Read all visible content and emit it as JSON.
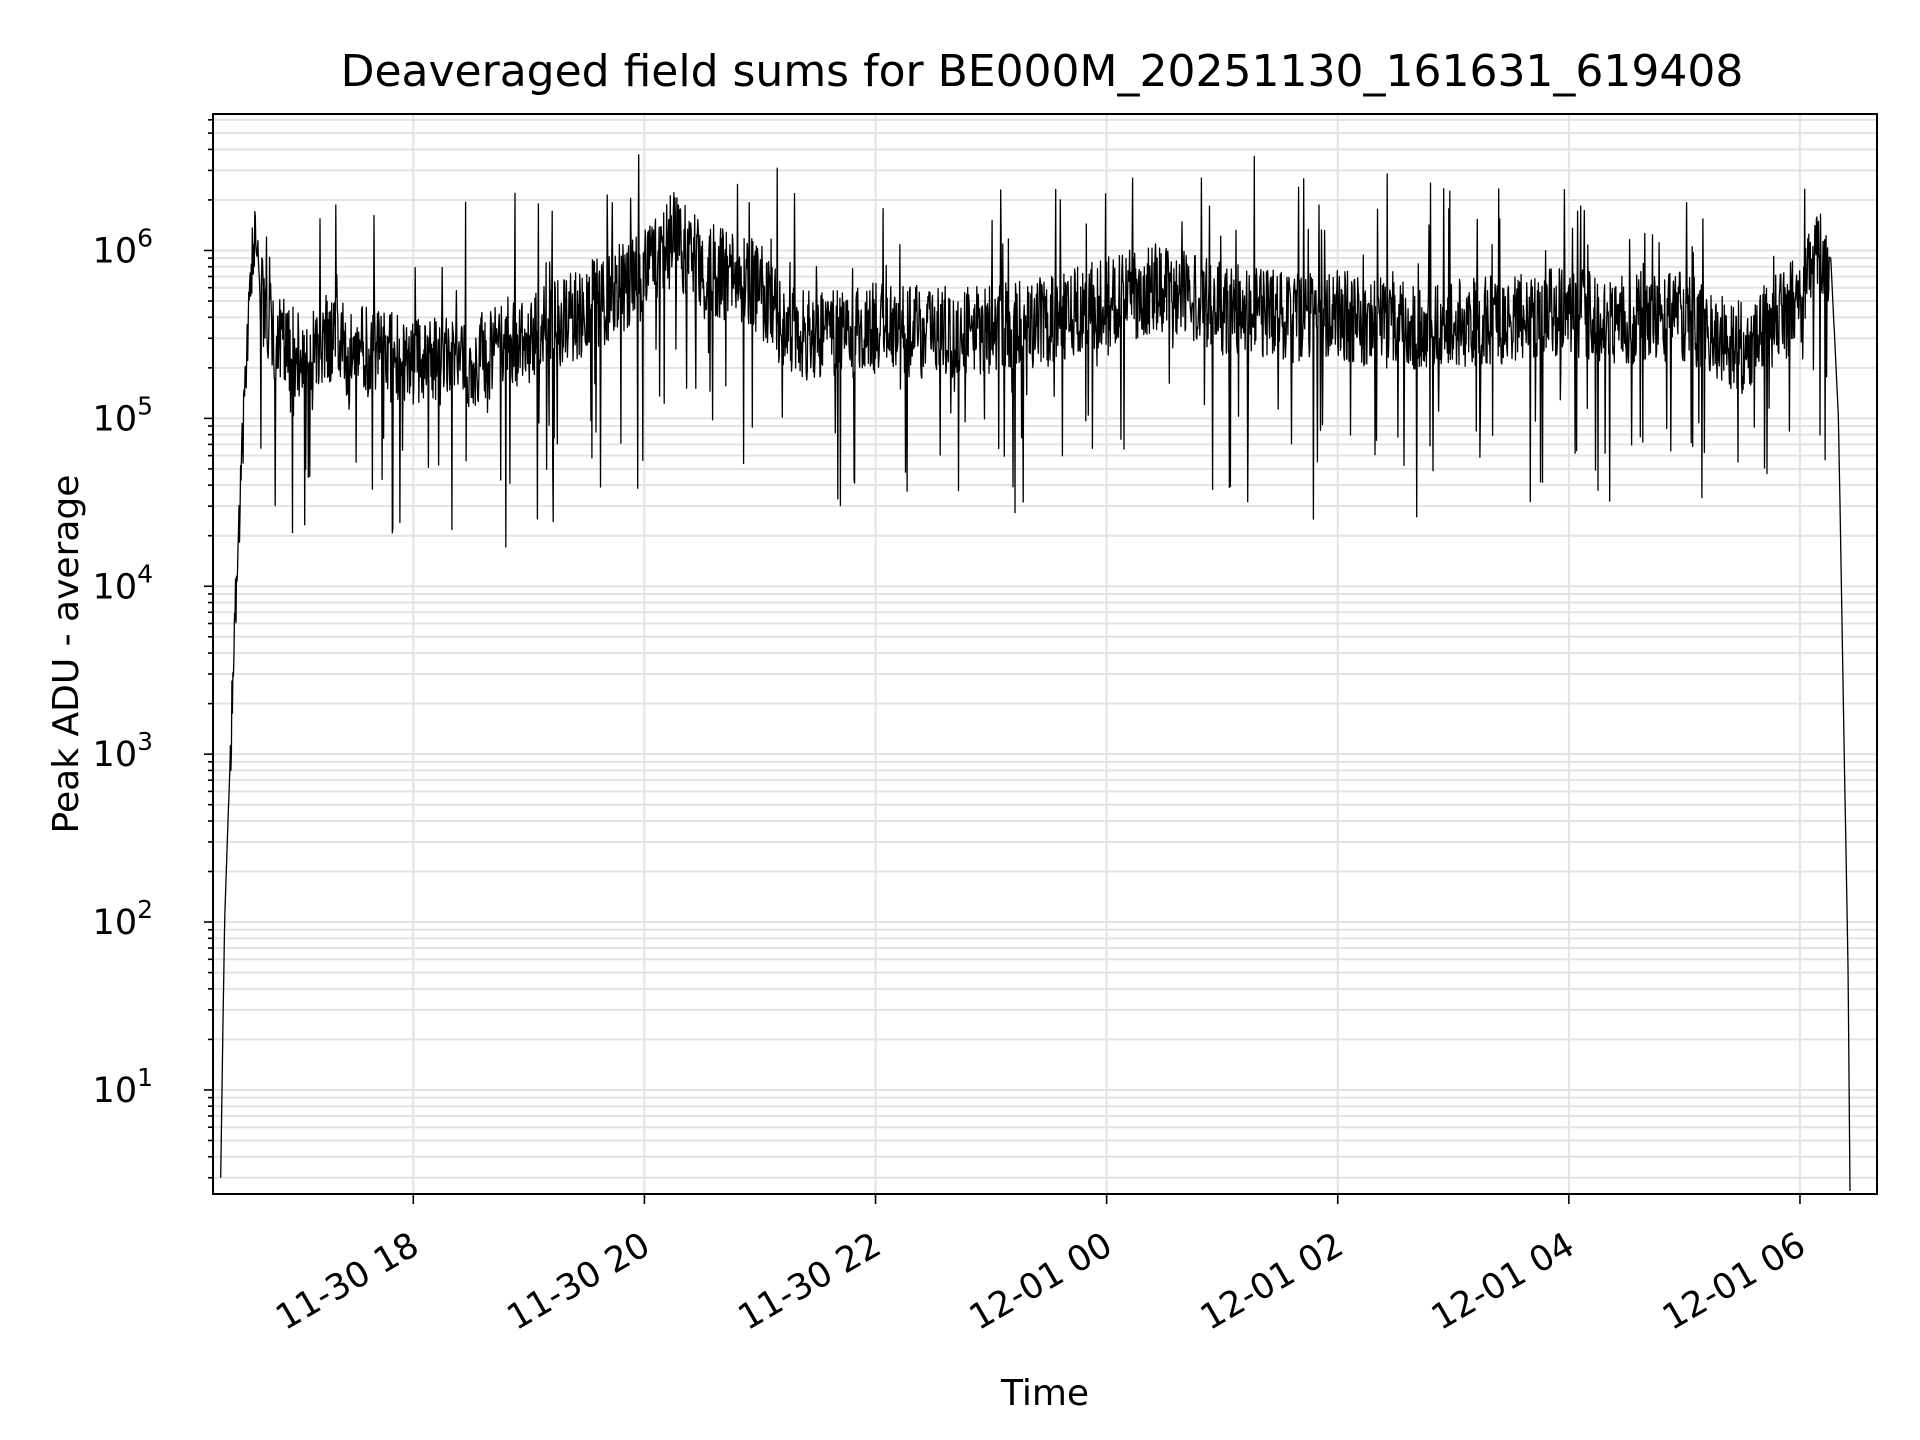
{
  "chart_data": {
    "type": "line",
    "title": "Deaveraged field sums for BE000M_20251130_161631_619408",
    "xlabel": "Time",
    "ylabel": "Peak ADU - average",
    "yscale": "log",
    "ylim": [
      2.4,
      6500000
    ],
    "xlim": [
      "2025-11-30 16:16",
      "2025-12-01 06:40"
    ],
    "x_ticks": [
      "11-30 18",
      "11-30 20",
      "11-30 22",
      "12-01 00",
      "12-01 02",
      "12-01 04",
      "12-01 06"
    ],
    "y_ticks": [
      {
        "base": "10",
        "exp": "1"
      },
      {
        "base": "10",
        "exp": "2"
      },
      {
        "base": "10",
        "exp": "3"
      },
      {
        "base": "10",
        "exp": "4"
      },
      {
        "base": "10",
        "exp": "5"
      },
      {
        "base": "10",
        "exp": "6"
      }
    ],
    "grid": true,
    "line_color": "#000000",
    "series": [
      {
        "x": [
          "2025-11-30 16:20",
          "2025-11-30 16:22",
          "2025-11-30 16:25",
          "2025-11-30 16:28",
          "2025-11-30 16:30",
          "2025-11-30 16:33",
          "2025-11-30 16:36",
          "2025-11-30 16:38",
          "2025-11-30 16:40",
          "2025-11-30 16:45",
          "2025-11-30 17:00",
          "2025-11-30 17:15",
          "2025-11-30 17:30",
          "2025-11-30 18:00",
          "2025-11-30 18:30",
          "2025-11-30 19:00",
          "2025-11-30 19:30",
          "2025-11-30 20:00",
          "2025-11-30 20:15",
          "2025-11-30 20:30",
          "2025-11-30 21:00",
          "2025-11-30 21:10",
          "2025-11-30 21:30",
          "2025-11-30 22:00",
          "2025-11-30 22:30",
          "2025-11-30 23:00",
          "2025-11-30 23:30",
          "2025-12-01 00:00",
          "2025-12-01 00:30",
          "2025-12-01 01:00",
          "2025-12-01 01:30",
          "2025-12-01 02:00",
          "2025-12-01 02:30",
          "2025-12-01 03:00",
          "2025-12-01 03:30",
          "2025-12-01 04:00",
          "2025-12-01 04:30",
          "2025-12-01 05:00",
          "2025-12-01 05:30",
          "2025-12-01 06:00",
          "2025-12-01 06:10",
          "2025-12-01 06:16",
          "2025-12-01 06:20",
          "2025-12-01 06:23",
          "2025-12-01 06:25",
          "2025-12-01 06:26"
        ],
        "y": [
          3,
          100,
          1000,
          10000,
          30000,
          200000,
          800000,
          1200000,
          700000,
          300000,
          250000,
          300000,
          250000,
          220000,
          220000,
          300000,
          450000,
          700000,
          1200000,
          800000,
          600000,
          350000,
          300000,
          350000,
          320000,
          350000,
          380000,
          500000,
          600000,
          450000,
          400000,
          420000,
          350000,
          380000,
          400000,
          420000,
          380000,
          400000,
          260000,
          500000,
          1000000,
          900000,
          100000,
          1000,
          50,
          2.5
        ]
      }
    ]
  }
}
